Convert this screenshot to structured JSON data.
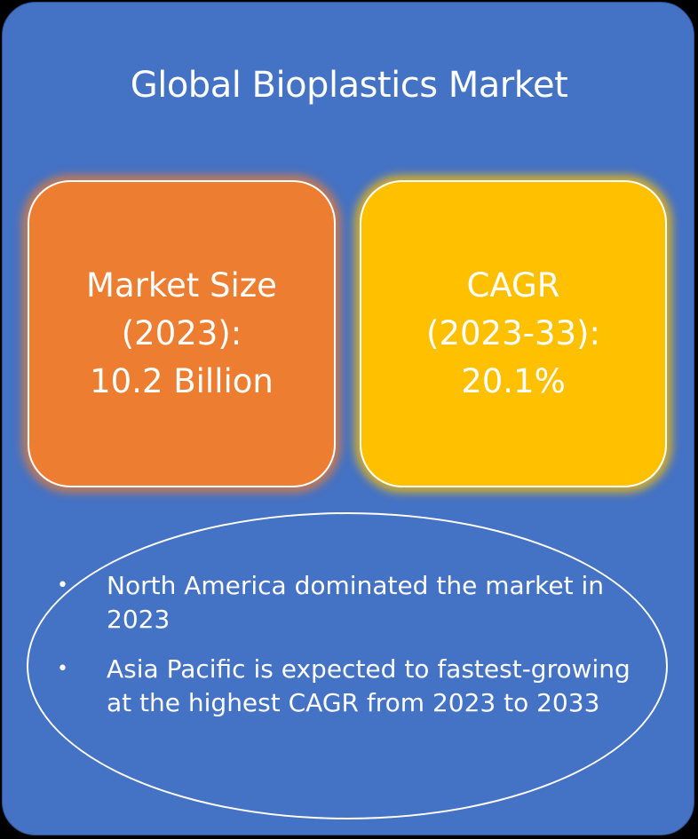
{
  "title": "Global Bioplastics Market",
  "cards": {
    "market_size": {
      "line1": "Market Size",
      "line2": "(2023):",
      "line3": "10.2 Billion"
    },
    "cagr": {
      "line1": "CAGR",
      "line2": "(2023-33):",
      "line3": "20.1%"
    }
  },
  "bullets": [
    "North America dominated the market in 2023",
    "Asia Pacific is expected to fastest-growing at the highest CAGR from 2023 to 2033"
  ],
  "bullet_symbol": "•",
  "colors": {
    "background": "#4472C4",
    "market_size_card": "#ED7D31",
    "cagr_card": "#FFC000",
    "text": "#FFFFFF"
  }
}
